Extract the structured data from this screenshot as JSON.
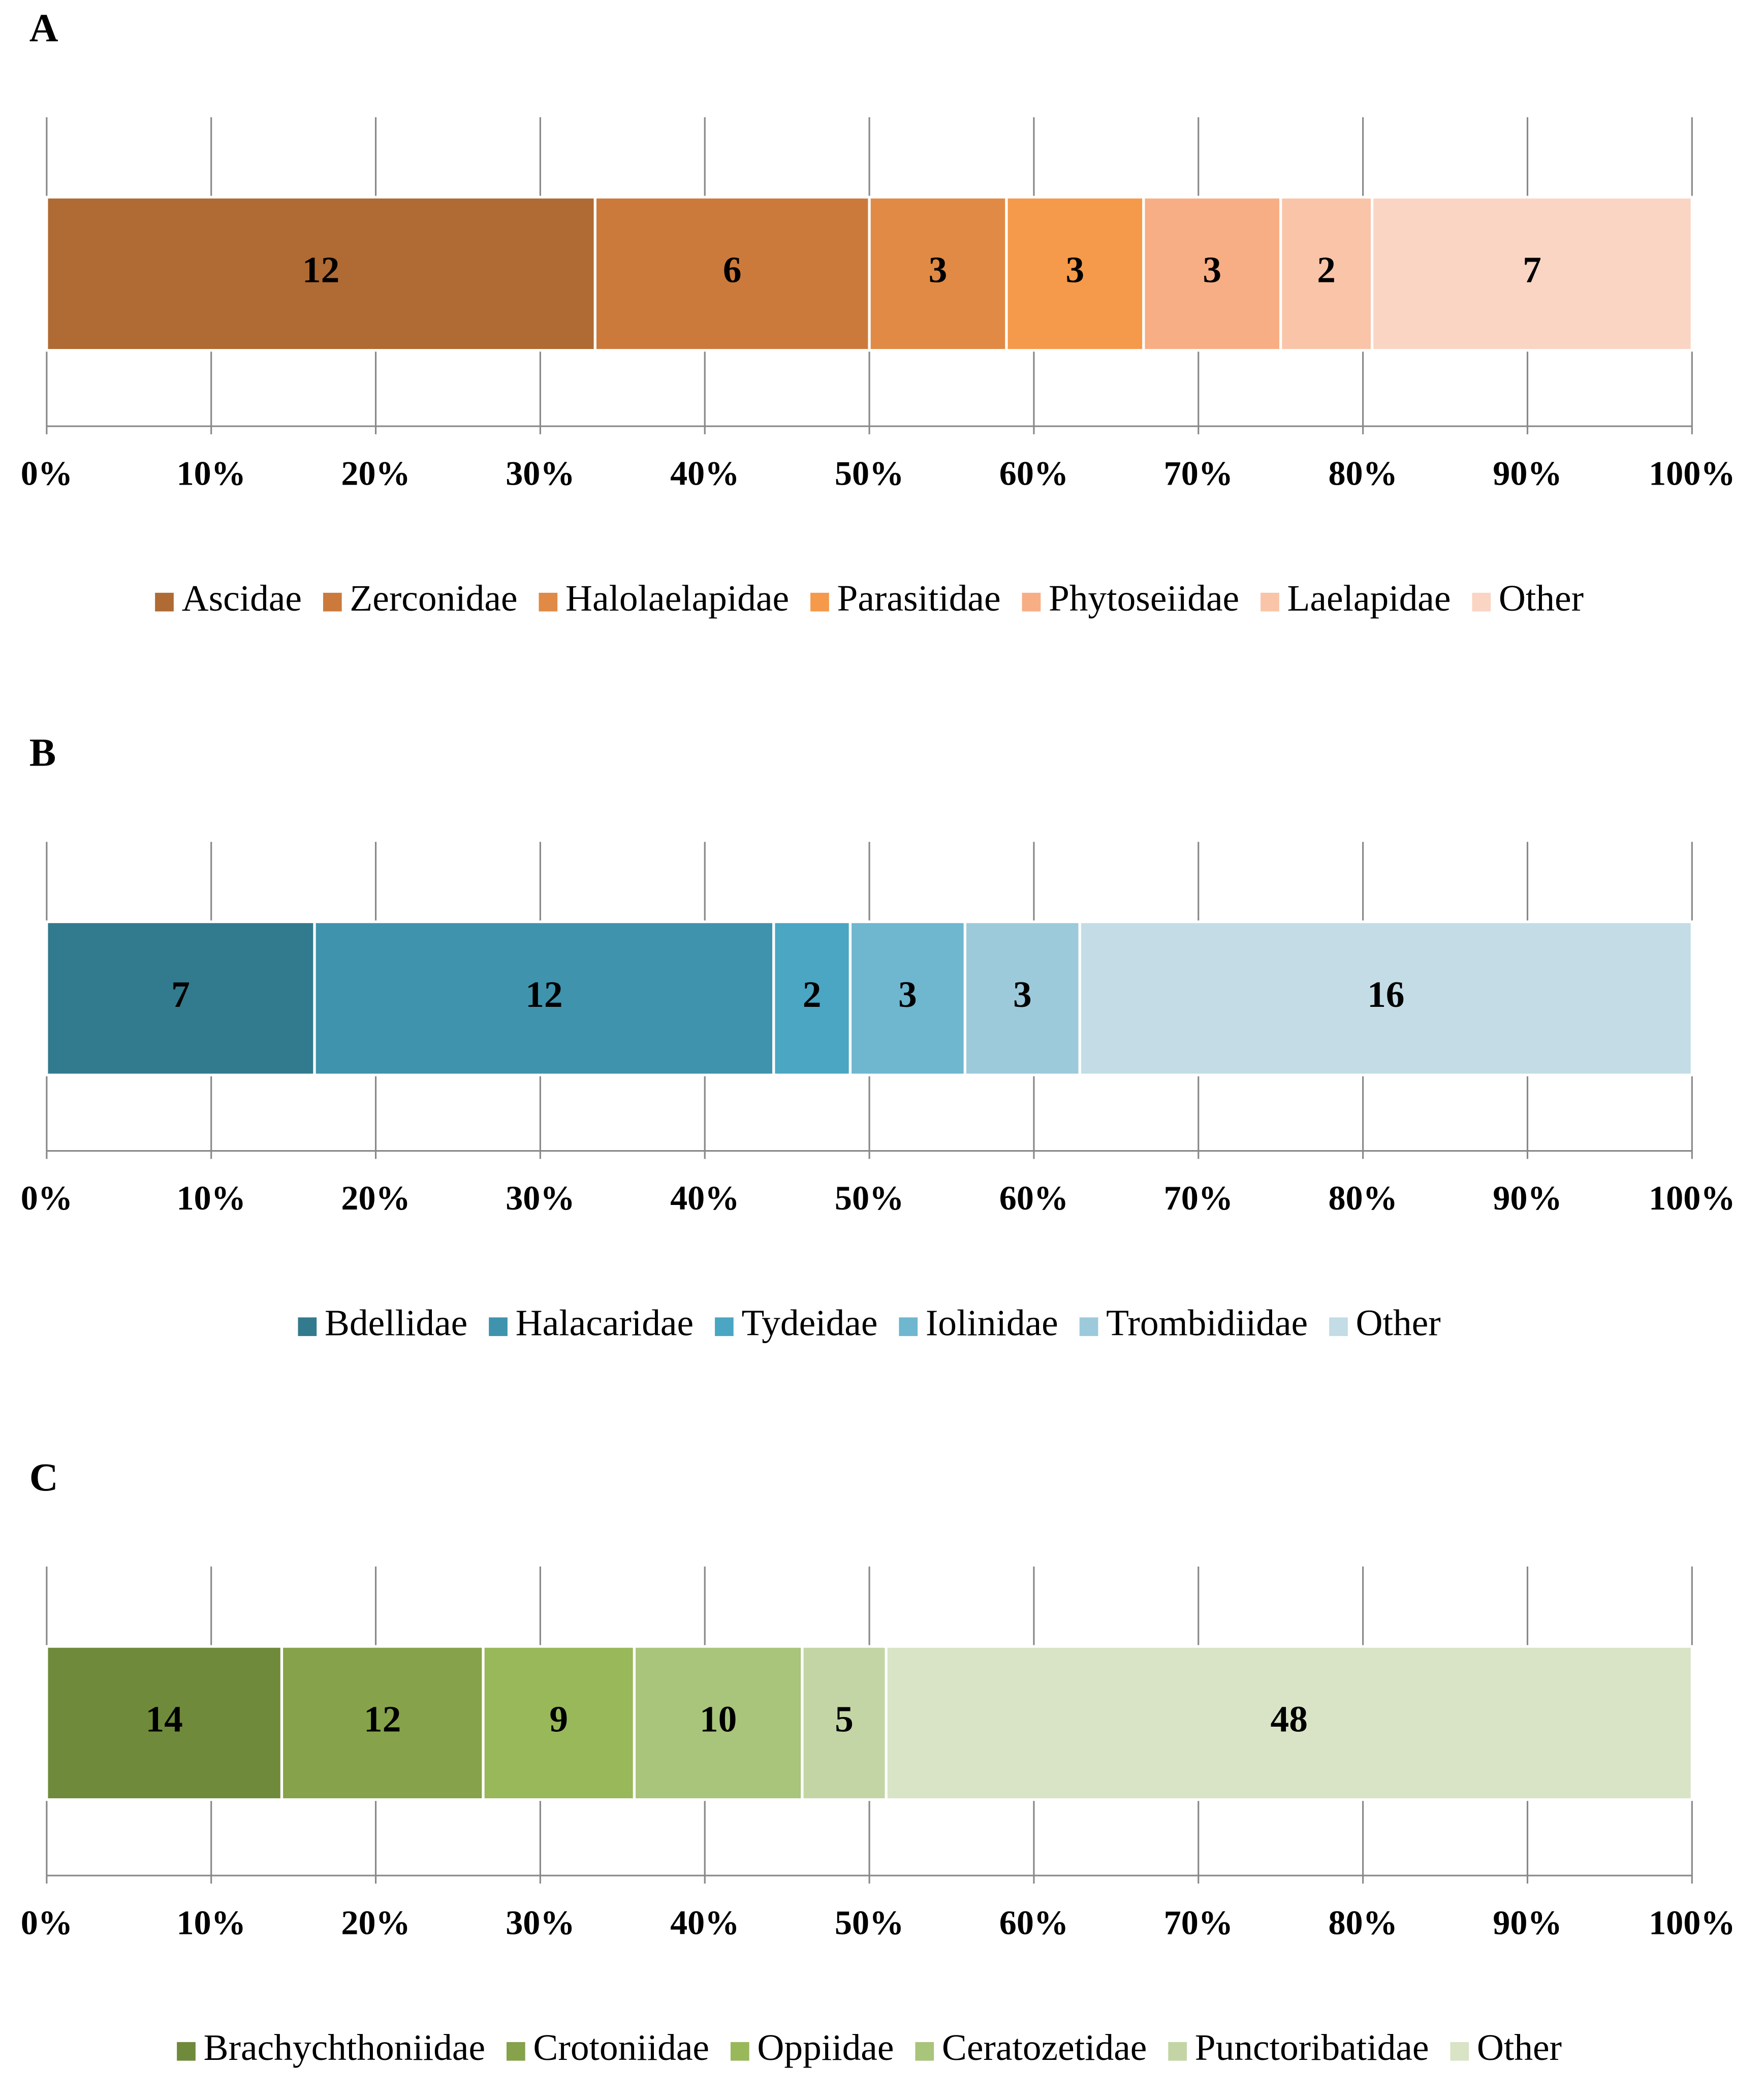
{
  "chart_data": [
    {
      "type": "bar",
      "orientation": "horizontal",
      "stacked": "percent",
      "title": "A",
      "xlim": [
        0,
        100
      ],
      "xticks": [
        {
          "value": 0,
          "label": "0%"
        },
        {
          "value": 10,
          "label": "10%"
        },
        {
          "value": 20,
          "label": "20%"
        },
        {
          "value": 30,
          "label": "30%"
        },
        {
          "value": 40,
          "label": "40%"
        },
        {
          "value": 50,
          "label": "50%"
        },
        {
          "value": 60,
          "label": "60%"
        },
        {
          "value": 70,
          "label": "70%"
        },
        {
          "value": 80,
          "label": "80%"
        },
        {
          "value": 90,
          "label": "90%"
        },
        {
          "value": 100,
          "label": "100%"
        }
      ],
      "grid": true,
      "legend": "bottom",
      "series": [
        {
          "name": "Ascidae",
          "color": "#b06a33",
          "values": [
            12
          ]
        },
        {
          "name": "Zerconidae",
          "color": "#cc7a3c",
          "values": [
            6
          ]
        },
        {
          "name": "Halolaelapidae",
          "color": "#e08a45",
          "values": [
            3
          ]
        },
        {
          "name": "Parasitidae",
          "color": "#f5994a",
          "values": [
            3
          ]
        },
        {
          "name": "Phytoseiidae",
          "color": "#f7ae84",
          "values": [
            3
          ]
        },
        {
          "name": "Laelapidae",
          "color": "#f9c4a8",
          "values": [
            2
          ]
        },
        {
          "name": "Other",
          "color": "#fad5c4",
          "values": [
            7
          ]
        }
      ]
    },
    {
      "type": "bar",
      "orientation": "horizontal",
      "stacked": "percent",
      "title": "B",
      "xlim": [
        0,
        100
      ],
      "xticks": [
        {
          "value": 0,
          "label": "0%"
        },
        {
          "value": 10,
          "label": "10%"
        },
        {
          "value": 20,
          "label": "20%"
        },
        {
          "value": 30,
          "label": "30%"
        },
        {
          "value": 40,
          "label": "40%"
        },
        {
          "value": 50,
          "label": "50%"
        },
        {
          "value": 60,
          "label": "60%"
        },
        {
          "value": 70,
          "label": "70%"
        },
        {
          "value": 80,
          "label": "80%"
        },
        {
          "value": 90,
          "label": "90%"
        },
        {
          "value": 100,
          "label": "100%"
        }
      ],
      "grid": true,
      "legend": "bottom",
      "series": [
        {
          "name": "Bdellidae",
          "color": "#327a8e",
          "values": [
            7
          ]
        },
        {
          "name": "Halacaridae",
          "color": "#3f93ad",
          "values": [
            12
          ]
        },
        {
          "name": "Tydeidae",
          "color": "#4aa6c3",
          "values": [
            2
          ]
        },
        {
          "name": "Iolinidae",
          "color": "#6fb6cf",
          "values": [
            3
          ]
        },
        {
          "name": "Trombidiidae",
          "color": "#9ccadb",
          "values": [
            3
          ]
        },
        {
          "name": "Other",
          "color": "#c3dce6",
          "values": [
            16
          ]
        }
      ]
    },
    {
      "type": "bar",
      "orientation": "horizontal",
      "stacked": "percent",
      "title": "C",
      "xlim": [
        0,
        100
      ],
      "xticks": [
        {
          "value": 0,
          "label": "0%"
        },
        {
          "value": 10,
          "label": "10%"
        },
        {
          "value": 20,
          "label": "20%"
        },
        {
          "value": 30,
          "label": "30%"
        },
        {
          "value": 40,
          "label": "40%"
        },
        {
          "value": 50,
          "label": "50%"
        },
        {
          "value": 60,
          "label": "60%"
        },
        {
          "value": 70,
          "label": "70%"
        },
        {
          "value": 80,
          "label": "80%"
        },
        {
          "value": 90,
          "label": "90%"
        },
        {
          "value": 100,
          "label": "100%"
        }
      ],
      "grid": true,
      "legend": "bottom",
      "series": [
        {
          "name": "Brachychthoniidae",
          "color": "#6f8a3a",
          "values": [
            14
          ]
        },
        {
          "name": "Crotoniidae",
          "color": "#86a24a",
          "values": [
            12
          ]
        },
        {
          "name": "Oppiidae",
          "color": "#99b85a",
          "values": [
            9
          ]
        },
        {
          "name": "Ceratozetidae",
          "color": "#a9c47b",
          "values": [
            10
          ]
        },
        {
          "name": "Punctoribatidae",
          "color": "#c3d5a5",
          "values": [
            5
          ]
        },
        {
          "name": "Other",
          "color": "#d9e3c6",
          "values": [
            48
          ]
        }
      ]
    }
  ]
}
